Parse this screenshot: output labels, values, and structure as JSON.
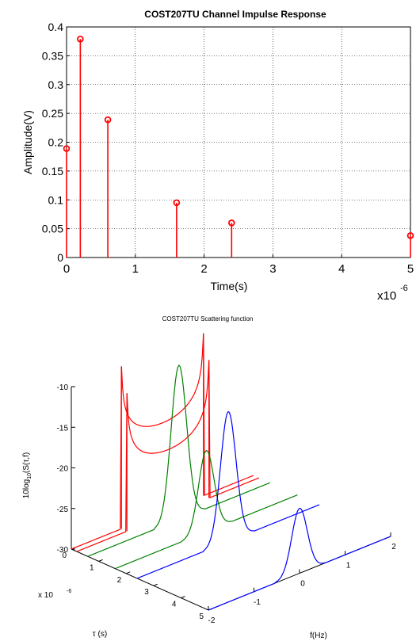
{
  "chart_data": [
    {
      "type": "stem",
      "title": "COST207TU Channel Impulse Response",
      "xlabel": "Time(s)",
      "ylabel": "Amplitude(V)",
      "x_multiplier": "x10",
      "x_multiplier_exp": "-6",
      "xlim": [
        0,
        5
      ],
      "ylim": [
        0,
        0.4
      ],
      "grid": true,
      "xticks": [
        "0",
        "1",
        "2",
        "3",
        "4",
        "5"
      ],
      "yticks": [
        "0",
        "0.05",
        "0.1",
        "0.15",
        "0.2",
        "0.25",
        "0.3",
        "0.35",
        "0.4"
      ],
      "series": [
        {
          "x": [
            0,
            0.2,
            0.6,
            1.6,
            2.4,
            5.0
          ],
          "y": [
            0.189,
            0.379,
            0.239,
            0.095,
            0.06,
            0.038
          ],
          "color": "#ff0000",
          "marker": "circle"
        }
      ]
    },
    {
      "type": "waterfall-3d",
      "title": "COST207TU Scattering function",
      "xlabel": "f(Hz)",
      "ylabel": "τ (s)",
      "zlabel_html": "10log10(S(τ,f)",
      "zlabel_parts": [
        "10log",
        "10",
        "(S(τ,f)"
      ],
      "y_multiplier": "x 10",
      "y_multiplier_exp": "-6",
      "xticks": [
        "-2",
        "-1",
        "0",
        "1",
        "2"
      ],
      "yticks": [
        "0",
        "1",
        "2",
        "3",
        "4",
        "5"
      ],
      "zticks": [
        "-10",
        "-15",
        "-20",
        "-25",
        "-30"
      ],
      "zlim": [
        -30,
        -10
      ],
      "series": [
        {
          "delay": 0.0,
          "color": "#ff0000",
          "shape": "jakes",
          "peak": -10
        },
        {
          "delay": 0.2,
          "color": "#ff0000",
          "shape": "jakes",
          "peak": -13
        },
        {
          "delay": 0.6,
          "color": "#008000",
          "shape": "gauss",
          "peak": -11
        },
        {
          "delay": 1.6,
          "color": "#008000",
          "shape": "gauss",
          "peak": -20
        },
        {
          "delay": 2.4,
          "color": "#0000ff",
          "shape": "gauss",
          "peak": -14
        },
        {
          "delay": 5.0,
          "color": "#0000ff",
          "shape": "gauss",
          "peak": -22
        }
      ]
    }
  ]
}
